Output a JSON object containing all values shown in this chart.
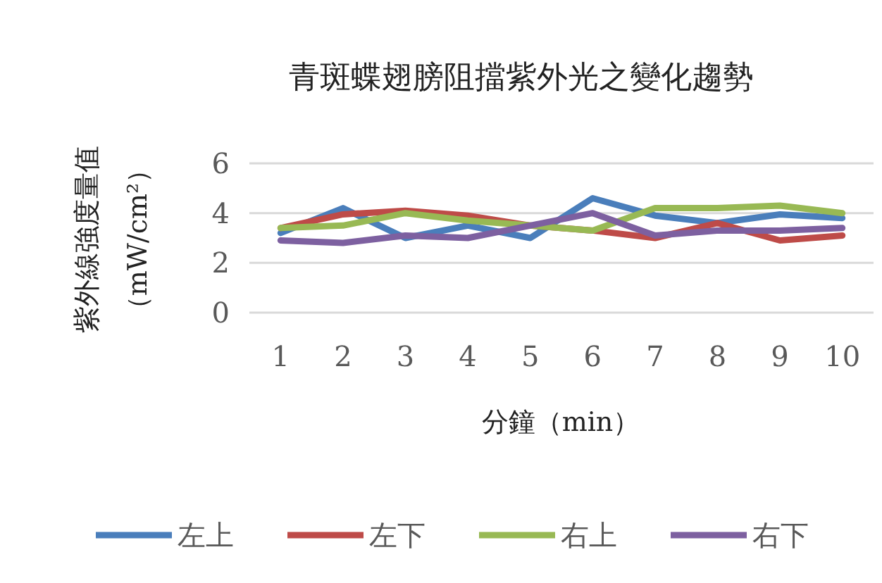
{
  "chart_data": {
    "type": "line",
    "title": "青斑蝶翅膀阻擋紫外光之變化趨勢",
    "xlabel": "分鐘（min）",
    "ylabel": "紫外線強度量值（mW/cm²）",
    "categories": [
      "1",
      "2",
      "3",
      "4",
      "5",
      "6",
      "7",
      "8",
      "9",
      "10"
    ],
    "series": [
      {
        "name": "左上",
        "color": "#4a7ebb",
        "values": [
          3.2,
          4.2,
          3.0,
          3.5,
          3.0,
          4.6,
          3.9,
          3.6,
          3.95,
          3.8
        ]
      },
      {
        "name": "左下",
        "color": "#be4b48",
        "values": [
          3.4,
          3.95,
          4.1,
          3.9,
          3.5,
          3.3,
          3.0,
          3.6,
          2.9,
          3.1
        ]
      },
      {
        "name": "右上",
        "color": "#98b954",
        "values": [
          3.4,
          3.5,
          4.0,
          3.7,
          3.5,
          3.3,
          4.2,
          4.2,
          4.3,
          4.0
        ]
      },
      {
        "name": "右下",
        "color": "#7d60a0",
        "values": [
          2.9,
          2.8,
          3.1,
          3.0,
          3.5,
          4.0,
          3.1,
          3.3,
          3.3,
          3.4
        ]
      }
    ],
    "ylim": [
      0,
      6
    ],
    "yticks": [
      0,
      2,
      4,
      6
    ],
    "grid": "y",
    "legend": "bottom",
    "line_style": "solid",
    "marker": "none"
  }
}
